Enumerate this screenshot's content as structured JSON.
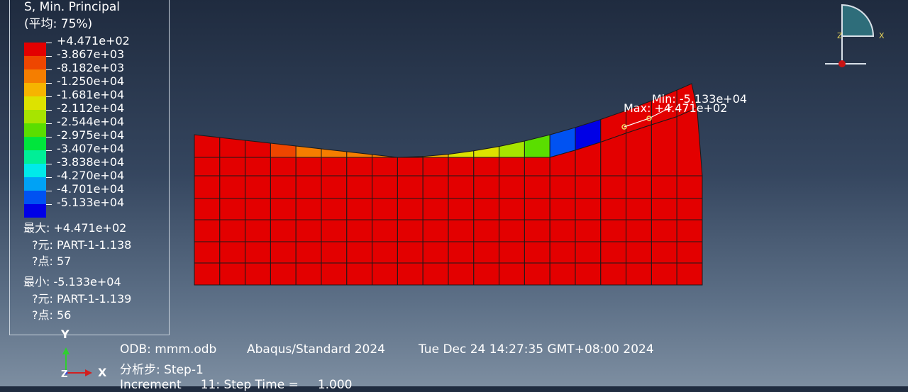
{
  "legend": {
    "title": "S, Min. Principal",
    "averaging": "(平均: 75%)",
    "entries": [
      {
        "label": "+4.471e+02",
        "color": "#e30000"
      },
      {
        "label": "-3.867e+03",
        "color": "#ee4600"
      },
      {
        "label": "-8.182e+03",
        "color": "#f57e00"
      },
      {
        "label": "-1.250e+04",
        "color": "#f6b400"
      },
      {
        "label": "-1.681e+04",
        "color": "#dde200"
      },
      {
        "label": "-2.112e+04",
        "color": "#a7e400"
      },
      {
        "label": "-2.544e+04",
        "color": "#5ade00"
      },
      {
        "label": "-2.975e+04",
        "color": "#00e53c"
      },
      {
        "label": "-3.407e+04",
        "color": "#00ef97"
      },
      {
        "label": "-3.838e+04",
        "color": "#00eaea"
      },
      {
        "label": "-4.270e+04",
        "color": "#00a2f5"
      },
      {
        "label": "-4.701e+04",
        "color": "#0052f2"
      },
      {
        "label": "-5.133e+04",
        "color": "#0000e6"
      }
    ],
    "extra_label": "-5.133e+04",
    "max": {
      "label": "最大: +4.471e+02",
      "element": "?元: PART-1-1.138",
      "node": "?点: 57"
    },
    "min": {
      "label": "最小: -5.133e+04",
      "element": "?元: PART-1-1.139",
      "node": "?点: 56"
    }
  },
  "viewport": {
    "min_marker": "Min: -5.133e+04",
    "max_marker": "Max: +4.471e+02"
  },
  "info": {
    "odb": "ODB: mmm.odb",
    "solver": "Abaqus/Standard 2024",
    "date": "Tue Dec 24 14:27:35 GMT+08:00 2024",
    "step": "分析步: Step-1",
    "increment": "Increment     11: Step Time =     1.000"
  },
  "triad": {
    "y": "Y",
    "z": "Z",
    "x": "X"
  },
  "view_cube": {
    "z": "Z",
    "x": "X"
  }
}
